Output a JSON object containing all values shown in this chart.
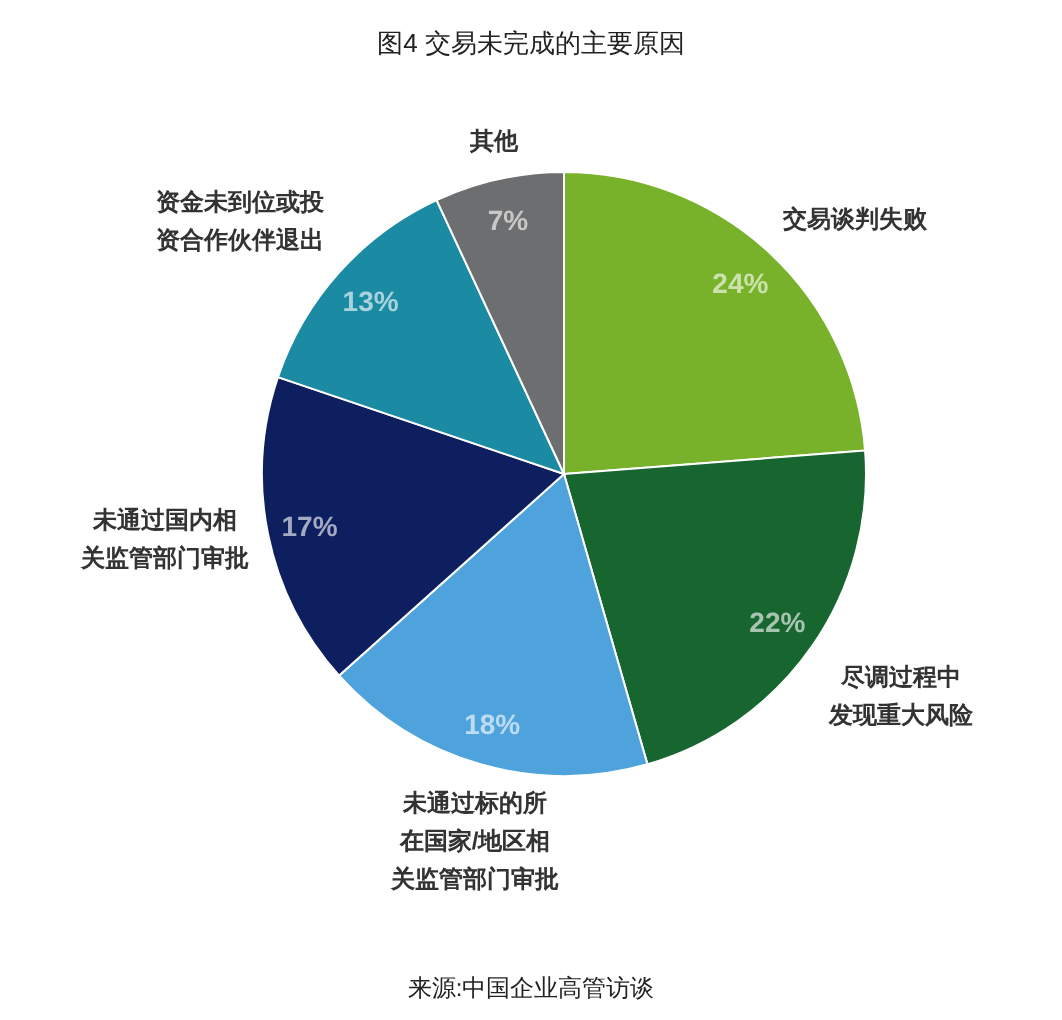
{
  "chart_data": {
    "type": "pie",
    "title": "图4 交易未完成的主要原因",
    "categories": [
      "交易谈判失败",
      "尽调过程中发现重大风险",
      "未通过标的所在国家/地区相关监管部门审批",
      "未通过国内相关监管部门审批",
      "资金未到位或投资合作伙伴退出",
      "其他"
    ],
    "values": [
      24,
      22,
      18,
      17,
      13,
      7
    ],
    "colors": [
      "#78b22a",
      "#17652f",
      "#4fa3dc",
      "#0d1f5e",
      "#1b8aa3",
      "#6d6e70"
    ],
    "value_labels": [
      "24%",
      "22%",
      "18%",
      "17%",
      "13%",
      "7%"
    ],
    "annotations": [
      "来源:中国企业高管访谈"
    ]
  }
}
